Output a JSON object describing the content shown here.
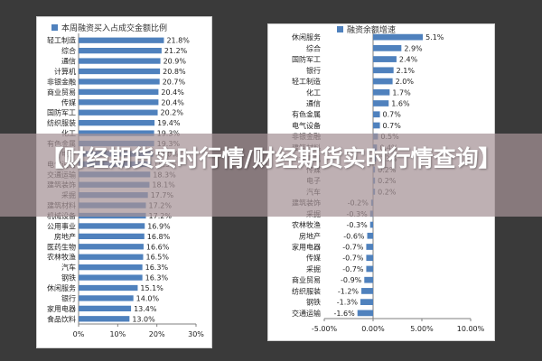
{
  "banner": {
    "title": "【财经期货实时行情/财经期货实时行情查询】"
  },
  "chart_data": [
    {
      "type": "bar",
      "orientation": "horizontal",
      "title": "本周融资买入占成交金额比例",
      "legend": {
        "entries": [
          "本周融资买入占成交金额比例"
        ],
        "placement": "top-left"
      },
      "bar_color": "#4f81bd",
      "categories": [
        "轻工制造",
        "综合",
        "通信",
        "计算机",
        "非银金融",
        "商业贸易",
        "传媒",
        "国防军工",
        "纺织服装",
        "化工",
        "有色金属",
        "电子",
        "电气设备",
        "交通运输",
        "建筑装饰",
        "采掘",
        "建筑材料",
        "机械设备",
        "公用事业",
        "房地产",
        "医药生物",
        "农林牧渔",
        "汽车",
        "钢铁",
        "休闲服务",
        "银行",
        "家用电器",
        "食品饮料"
      ],
      "values": [
        21.8,
        21.2,
        20.9,
        20.8,
        20.7,
        20.4,
        20.4,
        20.2,
        19.4,
        19.3,
        19.3,
        19.0,
        18.5,
        18.3,
        18.1,
        17.7,
        17.2,
        17.2,
        16.9,
        16.8,
        16.6,
        16.5,
        16.3,
        16.3,
        15.1,
        14.0,
        13.4,
        13.0
      ],
      "value_labels": [
        "21.8%",
        "21.2%",
        "20.9%",
        "20.8%",
        "20.7%",
        "20.4%",
        "20.4%",
        "20.2%",
        "19.4%",
        "19.3%",
        "19.3%",
        "19.0%",
        "18.5%",
        "18.3%",
        "18.1%",
        "17.7%",
        "17.2%",
        "17.2%",
        "16.9%",
        "16.8%",
        "16.6%",
        "16.5%",
        "16.3%",
        "16.3%",
        "15.1%",
        "14.0%",
        "13.4%",
        "13.0%"
      ],
      "xlim": [
        0,
        30
      ],
      "x_ticks": [
        0,
        10,
        20,
        30
      ],
      "x_tick_labels": [
        "0%",
        "10%",
        "20%",
        "30%"
      ],
      "grid": false
    },
    {
      "type": "bar",
      "orientation": "horizontal",
      "title": "融资余额增速",
      "legend": {
        "entries": [
          "融资余额增速"
        ],
        "placement": "top-left"
      },
      "bar_color": "#4f81bd",
      "categories": [
        "休闲服务",
        "综合",
        "国防军工",
        "银行",
        "轻工制造",
        "化工",
        "通信",
        "有色金属",
        "电气设备",
        "非银金融",
        "建筑材料",
        "计算机",
        "传媒",
        "电子",
        "汽车",
        "建筑装饰",
        "采掘",
        "农林牧渔",
        "房地产",
        "家用电器",
        "传媒",
        "采掘",
        "商业贸易",
        "纺织服装",
        "钢铁",
        "交通运输"
      ],
      "values": [
        5.1,
        2.9,
        2.4,
        2.1,
        2.0,
        1.7,
        1.6,
        0.7,
        0.7,
        0.5,
        0.4,
        0.3,
        0.2,
        0.2,
        0.2,
        -0.2,
        -0.3,
        -0.3,
        -0.6,
        -0.7,
        -0.7,
        -0.7,
        -0.9,
        -1.2,
        -1.3,
        -1.6
      ],
      "value_labels": [
        "5.1%",
        "2.9%",
        "2.4%",
        "2.1%",
        "2.0%",
        "1.7%",
        "1.6%",
        "0.7%",
        "0.7%",
        "0.5%",
        "0.4%",
        "0.3%",
        "0.2%",
        "0.2%",
        "0.2%",
        "-0.2%",
        "-0.3%",
        "-0.3%",
        "-0.6%",
        "-0.7%",
        "-0.7%",
        "-0.7%",
        "-0.9%",
        "-1.2%",
        "-1.3%",
        "-1.6%"
      ],
      "xlim": [
        -5,
        10
      ],
      "x_ticks": [
        -5,
        0,
        5,
        10
      ],
      "x_tick_labels": [
        "-5.00%",
        "0.00%",
        "5.00%",
        "10.00%"
      ],
      "grid": false
    }
  ]
}
